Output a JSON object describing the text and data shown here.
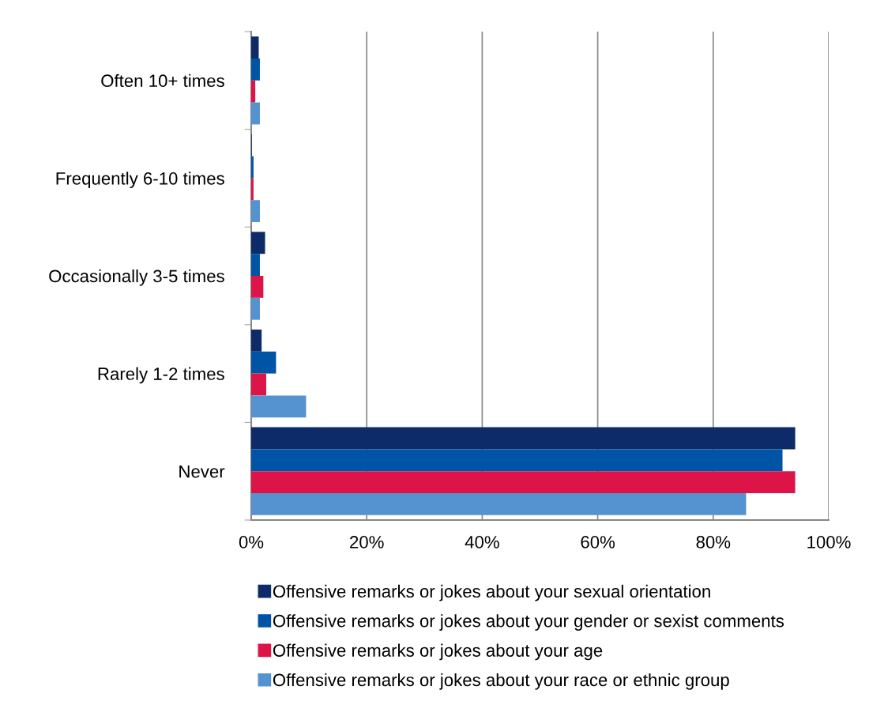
{
  "chart_data": {
    "type": "bar",
    "orientation": "horizontal",
    "categories": [
      "Often 10+ times",
      "Frequently 6-10 times",
      "Occasionally 3-5 times",
      "Rarely 1-2 times",
      "Never"
    ],
    "series": [
      {
        "name": "Offensive remarks or jokes about your sexual orientation",
        "color": "#0d2b69",
        "values": [
          1.3,
          0.1,
          2.4,
          1.8,
          94.2
        ]
      },
      {
        "name": "Offensive remarks or jokes about your gender or sexist comments",
        "color": "#0054a6",
        "values": [
          1.5,
          0.4,
          1.5,
          4.3,
          92.0
        ]
      },
      {
        "name": "Offensive remarks or jokes about your age",
        "color": "#dc1448",
        "values": [
          0.7,
          0.4,
          2.1,
          2.6,
          94.2
        ]
      },
      {
        "name": "Offensive remarks or jokes about your race or ethnic group",
        "color": "#5592d0",
        "values": [
          1.5,
          1.5,
          1.5,
          9.5,
          85.7
        ]
      }
    ],
    "xlim": [
      0,
      100
    ],
    "xticks": [
      {
        "value": 0,
        "label": "0%"
      },
      {
        "value": 20,
        "label": "20%"
      },
      {
        "value": 40,
        "label": "40%"
      },
      {
        "value": 60,
        "label": "60%"
      },
      {
        "value": 80,
        "label": "80%"
      },
      {
        "value": 100,
        "label": "100%"
      }
    ],
    "grid": "x",
    "legend": "bottom"
  }
}
